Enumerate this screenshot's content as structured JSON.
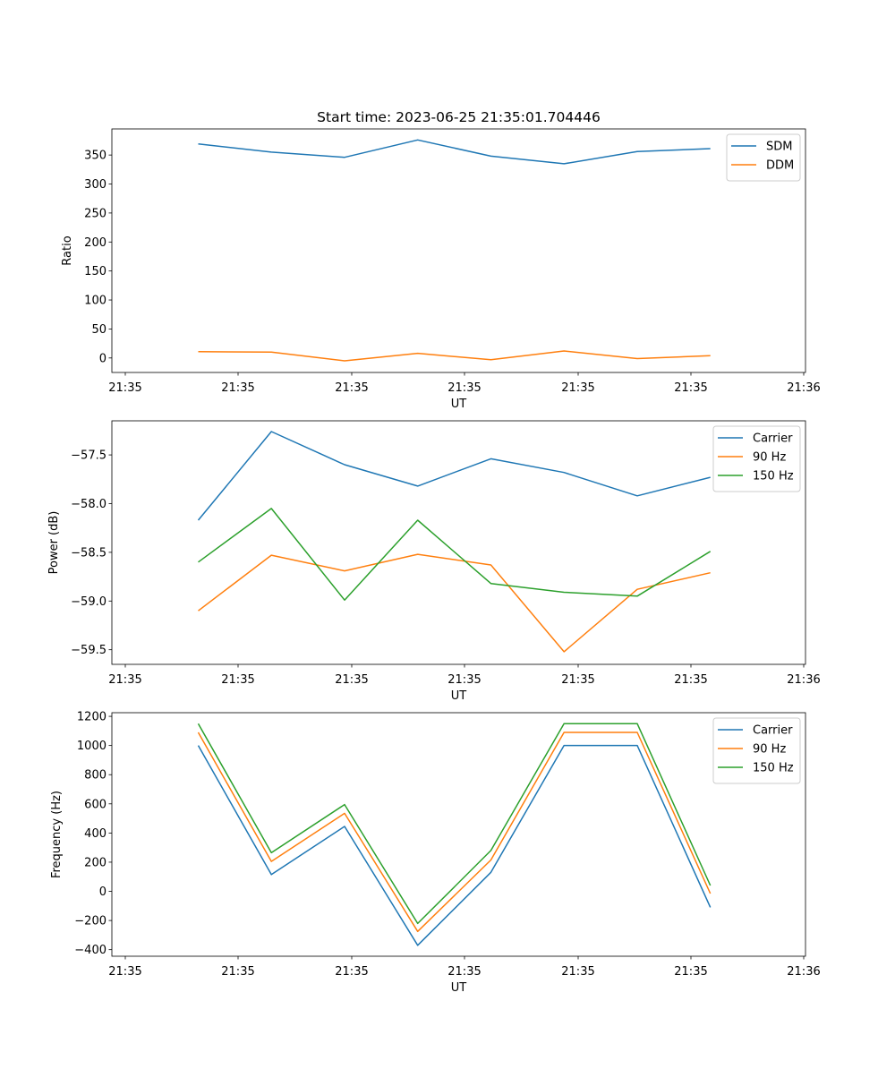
{
  "figure_title": "Start time: 2023-06-25 21:35:01.704446",
  "colors": {
    "blue": "#1f77b4",
    "orange": "#ff7f0e",
    "green": "#2ca02c"
  },
  "chart_data": [
    {
      "type": "line",
      "title": "Start time: 2023-06-25 21:35:01.704446",
      "xlabel": "UT",
      "ylabel": "Ratio",
      "x_tick_labels": [
        "21:35",
        "21:35",
        "21:35",
        "21:35",
        "21:35",
        "21:35",
        "21:36"
      ],
      "xlim": [
        -0.18,
        9.3
      ],
      "ylim": [
        -25,
        395
      ],
      "y_ticks": [
        0,
        50,
        100,
        150,
        200,
        250,
        300,
        350
      ],
      "x": [
        1,
        2,
        3,
        4,
        5,
        6,
        7,
        8
      ],
      "series": [
        {
          "name": "SDM",
          "color": "#1f77b4",
          "values": [
            369,
            355,
            346,
            376,
            348,
            335,
            356,
            361
          ]
        },
        {
          "name": "DDM",
          "color": "#ff7f0e",
          "values": [
            11,
            10,
            -5,
            8,
            -3,
            12,
            -1,
            4
          ]
        }
      ],
      "legend": "top-right",
      "grid": false
    },
    {
      "type": "line",
      "title": "",
      "xlabel": "UT",
      "ylabel": "Power (dB)",
      "x_tick_labels": [
        "21:35",
        "21:35",
        "21:35",
        "21:35",
        "21:35",
        "21:35",
        "21:36"
      ],
      "xlim": [
        -0.18,
        9.3
      ],
      "ylim": [
        -59.65,
        -57.15
      ],
      "y_ticks": [
        -59.5,
        -59.0,
        -58.5,
        -58.0,
        -57.5
      ],
      "y_tick_labels": [
        "−59.5",
        "−59.0",
        "−58.5",
        "−58.0",
        "−57.5"
      ],
      "x": [
        1,
        2,
        3,
        4,
        5,
        6,
        7,
        8
      ],
      "series": [
        {
          "name": "Carrier",
          "color": "#1f77b4",
          "values": [
            -58.17,
            -57.26,
            -57.6,
            -57.82,
            -57.54,
            -57.68,
            -57.92,
            -57.73
          ]
        },
        {
          "name": "90 Hz",
          "color": "#ff7f0e",
          "values": [
            -59.1,
            -58.53,
            -58.69,
            -58.52,
            -58.63,
            -59.52,
            -58.88,
            -58.71
          ]
        },
        {
          "name": "150 Hz",
          "color": "#2ca02c",
          "values": [
            -58.6,
            -58.05,
            -58.99,
            -58.17,
            -58.82,
            -58.91,
            -58.95,
            -58.49
          ]
        }
      ],
      "legend": "top-right",
      "grid": false
    },
    {
      "type": "line",
      "title": "",
      "xlabel": "UT",
      "ylabel": "Frequency (Hz)",
      "x_tick_labels": [
        "21:35",
        "21:35",
        "21:35",
        "21:35",
        "21:35",
        "21:35",
        "21:36"
      ],
      "xlim": [
        -0.18,
        9.3
      ],
      "ylim": [
        -445,
        1225
      ],
      "y_ticks": [
        -400,
        -200,
        0,
        200,
        400,
        600,
        800,
        1000,
        1200
      ],
      "y_tick_labels": [
        "−400",
        "−200",
        "0",
        "200",
        "400",
        "600",
        "800",
        "1000",
        "1200"
      ],
      "x": [
        1,
        2,
        3,
        4,
        5,
        6,
        7,
        8
      ],
      "series": [
        {
          "name": "Carrier",
          "color": "#1f77b4",
          "values": [
            1000,
            115,
            445,
            -370,
            130,
            1000,
            1000,
            -110
          ]
        },
        {
          "name": "90 Hz",
          "color": "#ff7f0e",
          "values": [
            1090,
            205,
            535,
            -275,
            215,
            1090,
            1090,
            -15
          ]
        },
        {
          "name": "150 Hz",
          "color": "#2ca02c",
          "values": [
            1150,
            265,
            595,
            -220,
            280,
            1150,
            1150,
            40
          ]
        }
      ],
      "legend": "top-right",
      "grid": false
    }
  ]
}
